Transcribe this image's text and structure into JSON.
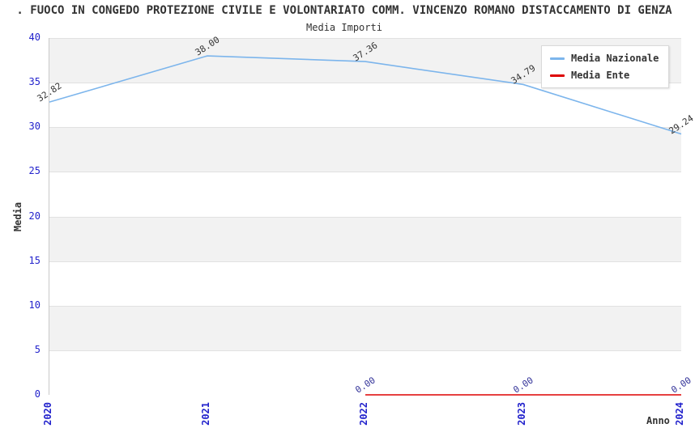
{
  "header": {
    "title": ". FUOCO IN CONGEDO PROTEZIONE CIVILE E VOLONTARIATO COMM. VINCENZO ROMANO DISTACCAMENTO DI GENZA",
    "subtitle": "Media Importi"
  },
  "legend": {
    "items": [
      {
        "label": "Media Nazionale",
        "color": "#7cb5ec"
      },
      {
        "label": "Media Ente",
        "color": "#dd0000"
      }
    ]
  },
  "axes": {
    "y_title": "Media",
    "x_title": "Anno",
    "y_ticks": [
      "40",
      "35",
      "30",
      "25",
      "20",
      "15",
      "10",
      "5",
      "0"
    ],
    "x_ticks": [
      "2020",
      "2021",
      "2022",
      "2023",
      "2024"
    ],
    "tick_color": "#2222cc",
    "grid_color": "#e1e1e1",
    "band_colors": [
      "#f2f2f2",
      "#ffffff"
    ]
  },
  "chart_data": {
    "type": "line",
    "title": "Media Importi",
    "xlabel": "Anno",
    "ylabel": "Media",
    "x": [
      "2020",
      "2021",
      "2022",
      "2023",
      "2024"
    ],
    "ylim": [
      0,
      40
    ],
    "grid": true,
    "legend_position": "top-right",
    "series": [
      {
        "name": "Media Nazionale",
        "color": "#7cb5ec",
        "values": [
          32.82,
          38.0,
          37.36,
          34.79,
          29.24
        ],
        "labels": [
          "32.82",
          "38.00",
          "37.36",
          "34.79",
          "29.24"
        ],
        "label_color": "#333333"
      },
      {
        "name": "Media Ente",
        "color": "#dd0000",
        "values": [
          null,
          null,
          0.0,
          0.0,
          0.0
        ],
        "labels": [
          null,
          null,
          "0.00",
          "0.00",
          "0.00"
        ],
        "label_color": "#333399"
      }
    ]
  }
}
